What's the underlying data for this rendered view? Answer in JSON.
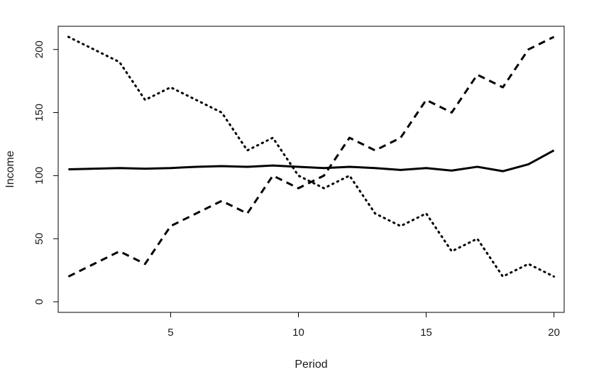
{
  "chart_data": {
    "type": "line",
    "title": "",
    "xlabel": "Period",
    "ylabel": "Income",
    "xlim": [
      0.6,
      20.4
    ],
    "ylim": [
      -8.4,
      218.4
    ],
    "x_ticks": [
      5,
      10,
      15,
      20
    ],
    "y_ticks": [
      0,
      50,
      100,
      150,
      200
    ],
    "grid": false,
    "legend": "none",
    "x": [
      1,
      2,
      3,
      4,
      5,
      6,
      7,
      8,
      9,
      10,
      11,
      12,
      13,
      14,
      15,
      16,
      17,
      18,
      19,
      20
    ],
    "series": [
      {
        "style": "solid",
        "values": [
          105,
          105.5,
          106,
          105.5,
          106,
          107,
          107.5,
          107,
          108,
          107,
          106,
          107,
          106,
          104.5,
          106,
          104,
          107,
          103.5,
          109,
          120
        ]
      },
      {
        "style": "dashed",
        "values": [
          20,
          30,
          40,
          30,
          60,
          70,
          80,
          70,
          100,
          90,
          100,
          130,
          120,
          130,
          160,
          150,
          180,
          170,
          200,
          210
        ]
      },
      {
        "style": "dotted",
        "values": [
          210,
          200,
          190,
          160,
          170,
          160,
          150,
          120,
          130,
          100,
          90,
          100,
          70,
          60,
          70,
          40,
          50,
          20,
          30,
          20
        ]
      }
    ]
  }
}
